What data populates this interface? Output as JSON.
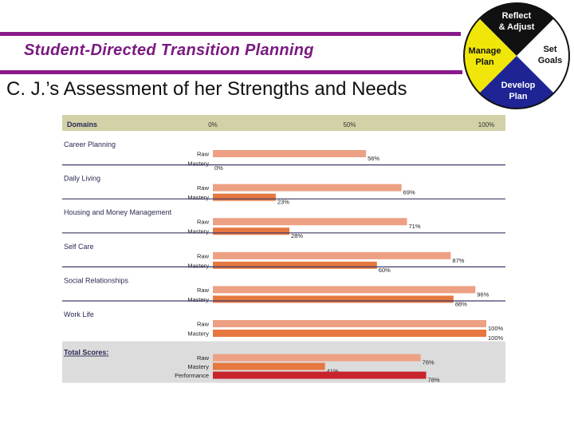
{
  "slide": {
    "title": "Student-Directed Transition Planning",
    "subtitle": "C. J.’s Assessment of her Strengths and Needs"
  },
  "wheel": {
    "top": "Reflect\n& Adjust",
    "right": "Set\nGoals",
    "bottom": "Develop\nPlan",
    "left": "Manage\nPlan",
    "colors": {
      "top": "#111111",
      "right": "#ffffff",
      "bottom": "#1e2494",
      "left": "#f0e60a",
      "outline": "#111111"
    }
  },
  "chart_data": {
    "type": "bar",
    "orientation": "horizontal",
    "header": {
      "label": "Domains",
      "ticks": [
        "0%",
        "50%",
        "100%"
      ]
    },
    "xlim": [
      0,
      100
    ],
    "groups": [
      {
        "name": "Career Planning",
        "bars": [
          {
            "label": "Raw",
            "value": 56,
            "value_label": "56%"
          },
          {
            "label": "Mastery",
            "value": 0,
            "value_label": "0%"
          }
        ]
      },
      {
        "name": "Daily Living",
        "bars": [
          {
            "label": "Raw",
            "value": 69,
            "value_label": "69%"
          },
          {
            "label": "Mastery",
            "value": 23,
            "value_label": "23%"
          }
        ]
      },
      {
        "name": "Housing and Money Management",
        "bars": [
          {
            "label": "Raw",
            "value": 71,
            "value_label": "71%"
          },
          {
            "label": "Mastery",
            "value": 28,
            "value_label": "28%"
          }
        ]
      },
      {
        "name": "Self Care",
        "bars": [
          {
            "label": "Raw",
            "value": 87,
            "value_label": "87%"
          },
          {
            "label": "Mastery",
            "value": 60,
            "value_label": "60%"
          }
        ]
      },
      {
        "name": "Social Relationships",
        "bars": [
          {
            "label": "Raw",
            "value": 96,
            "value_label": "96%"
          },
          {
            "label": "Mastery",
            "value": 88,
            "value_label": "88%"
          }
        ]
      },
      {
        "name": "Work Life",
        "bars": [
          {
            "label": "Raw",
            "value": 100,
            "value_label": "100%"
          },
          {
            "label": "Mastery",
            "value": 100,
            "value_label": "100%"
          }
        ]
      }
    ],
    "totals": {
      "name": "Total Scores:",
      "bars": [
        {
          "label": "Raw",
          "value": 76,
          "value_label": "76%"
        },
        {
          "label": "Mastery",
          "value": 41,
          "value_label": "41%"
        },
        {
          "label": "Performance",
          "value": 78,
          "value_label": "78%"
        }
      ]
    },
    "colors": {
      "raw": "#eda083",
      "mastery": "#e6783f",
      "performance": "#c8242c",
      "header_bg": "#d2d1a8",
      "totals_bg": "#dcdcdc",
      "divider": "#3a3a6a"
    }
  }
}
